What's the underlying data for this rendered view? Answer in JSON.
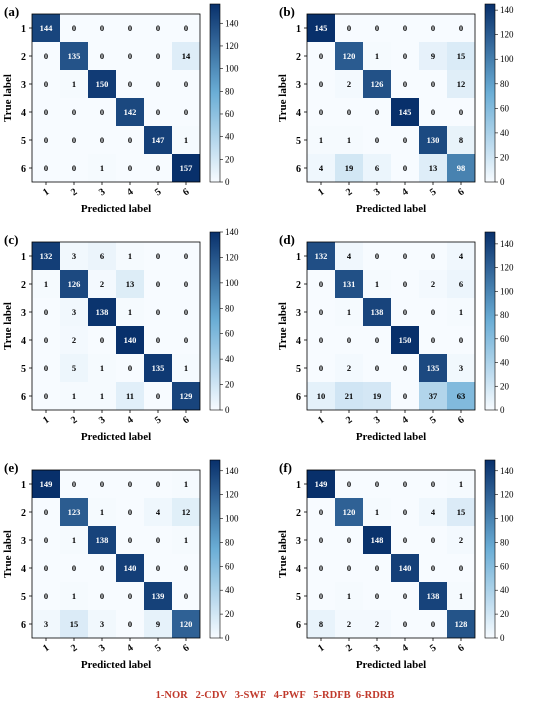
{
  "colorscale": {
    "low": "#f7fbff",
    "mid": "#6baed6",
    "high": "#08306b"
  },
  "legend": "1-NOR   2-CDV   3-SWF   4-PWF   5-RDFB  6-RDRB",
  "chart_data": [
    {
      "type": "heatmap",
      "panel_label": "(a)",
      "xlabel": "Predicted label",
      "ylabel": "True label",
      "x_ticks": [
        "1",
        "2",
        "3",
        "4",
        "5",
        "6"
      ],
      "y_ticks": [
        "1",
        "2",
        "3",
        "4",
        "5",
        "6"
      ],
      "colorbar_ticks": [
        0,
        20,
        40,
        60,
        80,
        100,
        120,
        140
      ],
      "vmax": 157,
      "matrix": [
        [
          144,
          0,
          0,
          0,
          0,
          0
        ],
        [
          0,
          135,
          0,
          0,
          0,
          14
        ],
        [
          0,
          1,
          150,
          0,
          0,
          0
        ],
        [
          0,
          0,
          0,
          142,
          0,
          0
        ],
        [
          0,
          0,
          0,
          0,
          147,
          1
        ],
        [
          0,
          0,
          1,
          0,
          0,
          157
        ]
      ]
    },
    {
      "type": "heatmap",
      "panel_label": "(b)",
      "xlabel": "Predicted label",
      "ylabel": "True label",
      "x_ticks": [
        "1",
        "2",
        "3",
        "4",
        "5",
        "6"
      ],
      "y_ticks": [
        "1",
        "2",
        "3",
        "4",
        "5",
        "6"
      ],
      "colorbar_ticks": [
        0,
        20,
        40,
        60,
        80,
        100,
        120,
        140
      ],
      "vmax": 145,
      "matrix": [
        [
          145,
          0,
          0,
          0,
          0,
          0
        ],
        [
          0,
          120,
          1,
          0,
          9,
          15
        ],
        [
          0,
          2,
          126,
          0,
          0,
          12
        ],
        [
          0,
          0,
          0,
          145,
          0,
          0
        ],
        [
          1,
          1,
          0,
          0,
          130,
          8
        ],
        [
          4,
          19,
          6,
          0,
          13,
          98
        ]
      ]
    },
    {
      "type": "heatmap",
      "panel_label": "(c)",
      "xlabel": "Predicted label",
      "ylabel": "True label",
      "x_ticks": [
        "1",
        "2",
        "3",
        "4",
        "5",
        "6"
      ],
      "y_ticks": [
        "1",
        "2",
        "3",
        "4",
        "5",
        "6"
      ],
      "colorbar_ticks": [
        0,
        20,
        40,
        60,
        80,
        100,
        120,
        140
      ],
      "vmax": 140,
      "matrix": [
        [
          132,
          3,
          6,
          1,
          0,
          0
        ],
        [
          1,
          126,
          2,
          13,
          0,
          0
        ],
        [
          0,
          3,
          138,
          1,
          0,
          0
        ],
        [
          0,
          2,
          0,
          140,
          0,
          0
        ],
        [
          0,
          5,
          1,
          0,
          135,
          1
        ],
        [
          0,
          1,
          1,
          11,
          0,
          129
        ]
      ]
    },
    {
      "type": "heatmap",
      "panel_label": "(d)",
      "xlabel": "Predicted label",
      "ylabel": "True label",
      "x_ticks": [
        "1",
        "2",
        "3",
        "4",
        "5",
        "6"
      ],
      "y_ticks": [
        "1",
        "2",
        "3",
        "4",
        "5",
        "6"
      ],
      "colorbar_ticks": [
        0,
        20,
        40,
        60,
        80,
        100,
        120,
        140
      ],
      "vmax": 150,
      "matrix": [
        [
          132,
          4,
          0,
          0,
          0,
          4
        ],
        [
          0,
          131,
          1,
          0,
          2,
          6
        ],
        [
          0,
          1,
          138,
          0,
          0,
          1
        ],
        [
          0,
          0,
          0,
          150,
          0,
          0
        ],
        [
          0,
          2,
          0,
          0,
          135,
          3
        ],
        [
          10,
          21,
          19,
          0,
          37,
          63
        ]
      ]
    },
    {
      "type": "heatmap",
      "panel_label": "(e)",
      "xlabel": "Predicted label",
      "ylabel": "True label",
      "x_ticks": [
        "1",
        "2",
        "3",
        "4",
        "5",
        "6"
      ],
      "y_ticks": [
        "1",
        "2",
        "3",
        "4",
        "5",
        "6"
      ],
      "colorbar_ticks": [
        0,
        20,
        40,
        60,
        80,
        100,
        120,
        140
      ],
      "vmax": 149,
      "matrix": [
        [
          149,
          0,
          0,
          0,
          0,
          1
        ],
        [
          0,
          123,
          1,
          0,
          4,
          12
        ],
        [
          0,
          1,
          138,
          0,
          0,
          1
        ],
        [
          0,
          0,
          0,
          140,
          0,
          0
        ],
        [
          0,
          1,
          0,
          0,
          139,
          0
        ],
        [
          3,
          15,
          3,
          0,
          9,
          120
        ]
      ]
    },
    {
      "type": "heatmap",
      "panel_label": "(f)",
      "xlabel": "Predicted label",
      "ylabel": "True label",
      "x_ticks": [
        "1",
        "2",
        "3",
        "4",
        "5",
        "6"
      ],
      "y_ticks": [
        "1",
        "2",
        "3",
        "4",
        "5",
        "6"
      ],
      "colorbar_ticks": [
        0,
        20,
        40,
        60,
        80,
        100,
        120,
        140
      ],
      "vmax": 149,
      "matrix": [
        [
          149,
          0,
          0,
          0,
          0,
          1
        ],
        [
          0,
          120,
          1,
          0,
          4,
          15
        ],
        [
          0,
          0,
          148,
          0,
          0,
          2
        ],
        [
          0,
          0,
          0,
          140,
          0,
          0
        ],
        [
          0,
          1,
          0,
          0,
          138,
          1
        ],
        [
          8,
          2,
          2,
          0,
          0,
          128
        ]
      ]
    }
  ]
}
